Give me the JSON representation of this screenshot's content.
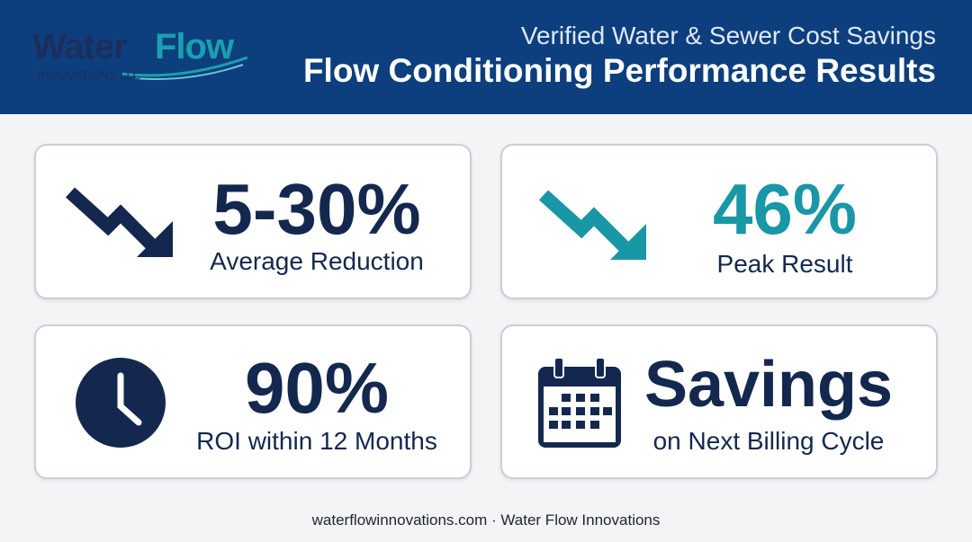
{
  "header": {
    "logo": {
      "word1": "Water",
      "word2": "Flow",
      "tagline": "INNOVATIONS LLC"
    },
    "subtitle": "Verified Water & Sewer Cost Savings",
    "title": "Flow Conditioning Performance Results"
  },
  "cards": [
    {
      "headline": "5-30%",
      "caption": "Average Reduction"
    },
    {
      "headline": "46%",
      "caption": "Peak Result"
    },
    {
      "headline": "90%",
      "caption": "ROI within 12 Months"
    },
    {
      "headline": "Savings",
      "caption": "on Next Billing Cycle"
    }
  ],
  "footer": "waterflowinnovations.com · Water Flow Innovations"
}
